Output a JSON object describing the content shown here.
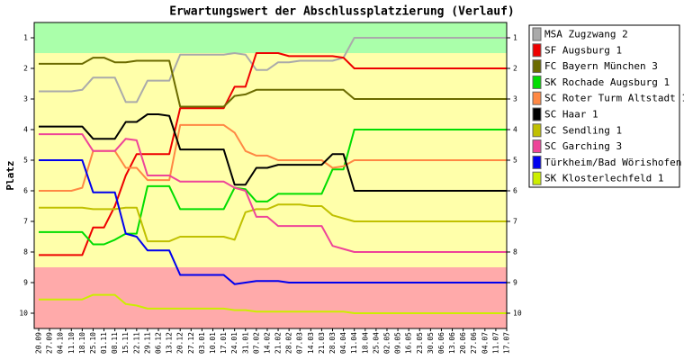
{
  "chart_data": {
    "type": "line",
    "title": "Erwartungswert der Abschlussplatzierung (Verlauf)",
    "y_label": "Platz",
    "y_inverted": true,
    "ylim": [
      0.5,
      10.5
    ],
    "yticks": [
      1,
      2,
      3,
      4,
      5,
      6,
      7,
      8,
      9,
      10
    ],
    "bands": [
      {
        "from": 0.5,
        "to": 1.5,
        "color": "#aaffaa"
      },
      {
        "from": 1.5,
        "to": 8.5,
        "color": "#ffffaa"
      },
      {
        "from": 8.5,
        "to": 10.5,
        "color": "#ffaaaa"
      }
    ],
    "categories": [
      "20.09",
      "27.09",
      "04.10",
      "11.10",
      "18.10",
      "25.10",
      "01.11",
      "08.11",
      "15.11",
      "22.11",
      "29.11",
      "06.12",
      "13.12",
      "20.12",
      "27.12",
      "03.01",
      "10.01",
      "17.01",
      "24.01",
      "31.01",
      "07.02",
      "14.02",
      "21.02",
      "28.02",
      "07.03",
      "14.03",
      "21.03",
      "28.03",
      "04.04",
      "11.04",
      "18.04",
      "25.04",
      "02.05",
      "09.05",
      "16.05",
      "23.05",
      "30.05",
      "06.06",
      "13.06",
      "20.06",
      "27.06",
      "04.07",
      "11.07",
      "17.07"
    ],
    "series": [
      {
        "name": "MSA Zugzwang 2",
        "color": "#aaaaaa",
        "values": [
          2.75,
          2.75,
          2.75,
          2.75,
          2.7,
          2.3,
          2.3,
          2.3,
          3.1,
          3.1,
          2.4,
          2.4,
          2.4,
          1.55,
          1.55,
          1.55,
          1.55,
          1.55,
          1.5,
          1.55,
          2.05,
          2.05,
          1.8,
          1.8,
          1.75,
          1.75,
          1.75,
          1.75,
          1.65,
          1,
          1,
          1,
          1,
          1,
          1,
          1,
          1,
          1,
          1,
          1,
          1,
          1,
          1,
          1
        ]
      },
      {
        "name": "SF Augsburg 1",
        "color": "#ee0000",
        "values": [
          8.1,
          8.1,
          8.1,
          8.1,
          8.1,
          7.2,
          7.2,
          6.5,
          5.5,
          4.8,
          4.8,
          4.8,
          4.8,
          3.3,
          3.3,
          3.3,
          3.3,
          3.3,
          2.6,
          2.6,
          1.5,
          1.5,
          1.5,
          1.6,
          1.6,
          1.6,
          1.6,
          1.6,
          1.65,
          2,
          2,
          2,
          2,
          2,
          2,
          2,
          2,
          2,
          2,
          2,
          2,
          2,
          2,
          2
        ]
      },
      {
        "name": "FC Bayern München 3",
        "color": "#6b6b00",
        "values": [
          1.85,
          1.85,
          1.85,
          1.85,
          1.85,
          1.65,
          1.65,
          1.8,
          1.8,
          1.75,
          1.75,
          1.75,
          1.75,
          3.25,
          3.25,
          3.25,
          3.25,
          3.25,
          2.9,
          2.85,
          2.7,
          2.7,
          2.7,
          2.7,
          2.7,
          2.7,
          2.7,
          2.7,
          2.7,
          3,
          3,
          3,
          3,
          3,
          3,
          3,
          3,
          3,
          3,
          3,
          3,
          3,
          3,
          3
        ]
      },
      {
        "name": "SK Rochade Augsburg 1",
        "color": "#00dd00",
        "values": [
          7.35,
          7.35,
          7.35,
          7.35,
          7.35,
          7.75,
          7.75,
          7.6,
          7.4,
          7.4,
          5.85,
          5.85,
          5.85,
          6.6,
          6.6,
          6.6,
          6.6,
          6.6,
          5.9,
          5.95,
          6.35,
          6.35,
          6.1,
          6.1,
          6.1,
          6.1,
          6.1,
          5.3,
          5.3,
          4,
          4,
          4,
          4,
          4,
          4,
          4,
          4,
          4,
          4,
          4,
          4,
          4,
          4,
          4
        ]
      },
      {
        "name": "SC Roter Turm Altstadt 1",
        "color": "#ff8844",
        "values": [
          6,
          6,
          6,
          6,
          5.9,
          4.7,
          4.7,
          4.7,
          5.25,
          5.25,
          5.65,
          5.65,
          5.65,
          3.85,
          3.85,
          3.85,
          3.85,
          3.85,
          4.1,
          4.7,
          4.85,
          4.85,
          5,
          5,
          5,
          5,
          5,
          5.25,
          5.2,
          5,
          5,
          5,
          5,
          5,
          5,
          5,
          5,
          5,
          5,
          5,
          5,
          5,
          5,
          5
        ]
      },
      {
        "name": "SC Haar 1",
        "color": "#000000",
        "values": [
          3.9,
          3.9,
          3.9,
          3.9,
          3.9,
          4.3,
          4.3,
          4.3,
          3.75,
          3.75,
          3.5,
          3.5,
          3.55,
          4.65,
          4.65,
          4.65,
          4.65,
          4.65,
          5.8,
          5.8,
          5.25,
          5.25,
          5.15,
          5.15,
          5.15,
          5.15,
          5.15,
          4.8,
          4.8,
          6,
          6,
          6,
          6,
          6,
          6,
          6,
          6,
          6,
          6,
          6,
          6,
          6,
          6,
          6
        ]
      },
      {
        "name": "SC Sendling 1",
        "color": "#c0c000",
        "values": [
          6.55,
          6.55,
          6.55,
          6.55,
          6.55,
          6.6,
          6.6,
          6.6,
          6.55,
          6.55,
          7.65,
          7.65,
          7.65,
          7.5,
          7.5,
          7.5,
          7.5,
          7.5,
          7.6,
          6.7,
          6.6,
          6.6,
          6.45,
          6.45,
          6.45,
          6.5,
          6.5,
          6.8,
          6.9,
          7,
          7,
          7,
          7,
          7,
          7,
          7,
          7,
          7,
          7,
          7,
          7,
          7,
          7,
          7
        ]
      },
      {
        "name": "SC Garching 3",
        "color": "#ee4499",
        "values": [
          4.15,
          4.15,
          4.15,
          4.15,
          4.15,
          4.7,
          4.7,
          4.7,
          4.3,
          4.35,
          5.5,
          5.5,
          5.5,
          5.7,
          5.7,
          5.7,
          5.7,
          5.7,
          5.9,
          6,
          6.85,
          6.85,
          7.15,
          7.15,
          7.15,
          7.15,
          7.15,
          7.8,
          7.9,
          8,
          8,
          8,
          8,
          8,
          8,
          8,
          8,
          8,
          8,
          8,
          8,
          8,
          8,
          8
        ]
      },
      {
        "name": "Türkheim/Bad Wörishofen",
        "color": "#0000ee",
        "values": [
          5,
          5,
          5,
          5,
          5,
          6.05,
          6.05,
          6.05,
          7.4,
          7.5,
          7.95,
          7.95,
          7.95,
          8.75,
          8.75,
          8.75,
          8.75,
          8.75,
          9.05,
          9,
          8.95,
          8.95,
          8.95,
          9,
          9,
          9,
          9,
          9,
          9,
          9,
          9,
          9,
          9,
          9,
          9,
          9,
          9,
          9,
          9,
          9,
          9,
          9,
          9,
          9
        ]
      },
      {
        "name": "SK Klosterlechfeld 1",
        "color": "#ccee00",
        "values": [
          9.55,
          9.55,
          9.55,
          9.55,
          9.55,
          9.4,
          9.4,
          9.4,
          9.7,
          9.75,
          9.85,
          9.85,
          9.85,
          9.85,
          9.85,
          9.85,
          9.85,
          9.85,
          9.9,
          9.9,
          9.95,
          9.95,
          9.95,
          9.95,
          9.95,
          9.95,
          9.95,
          9.95,
          9.95,
          10,
          10,
          10,
          10,
          10,
          10,
          10,
          10,
          10,
          10,
          10,
          10,
          10,
          10,
          10
        ]
      }
    ]
  }
}
